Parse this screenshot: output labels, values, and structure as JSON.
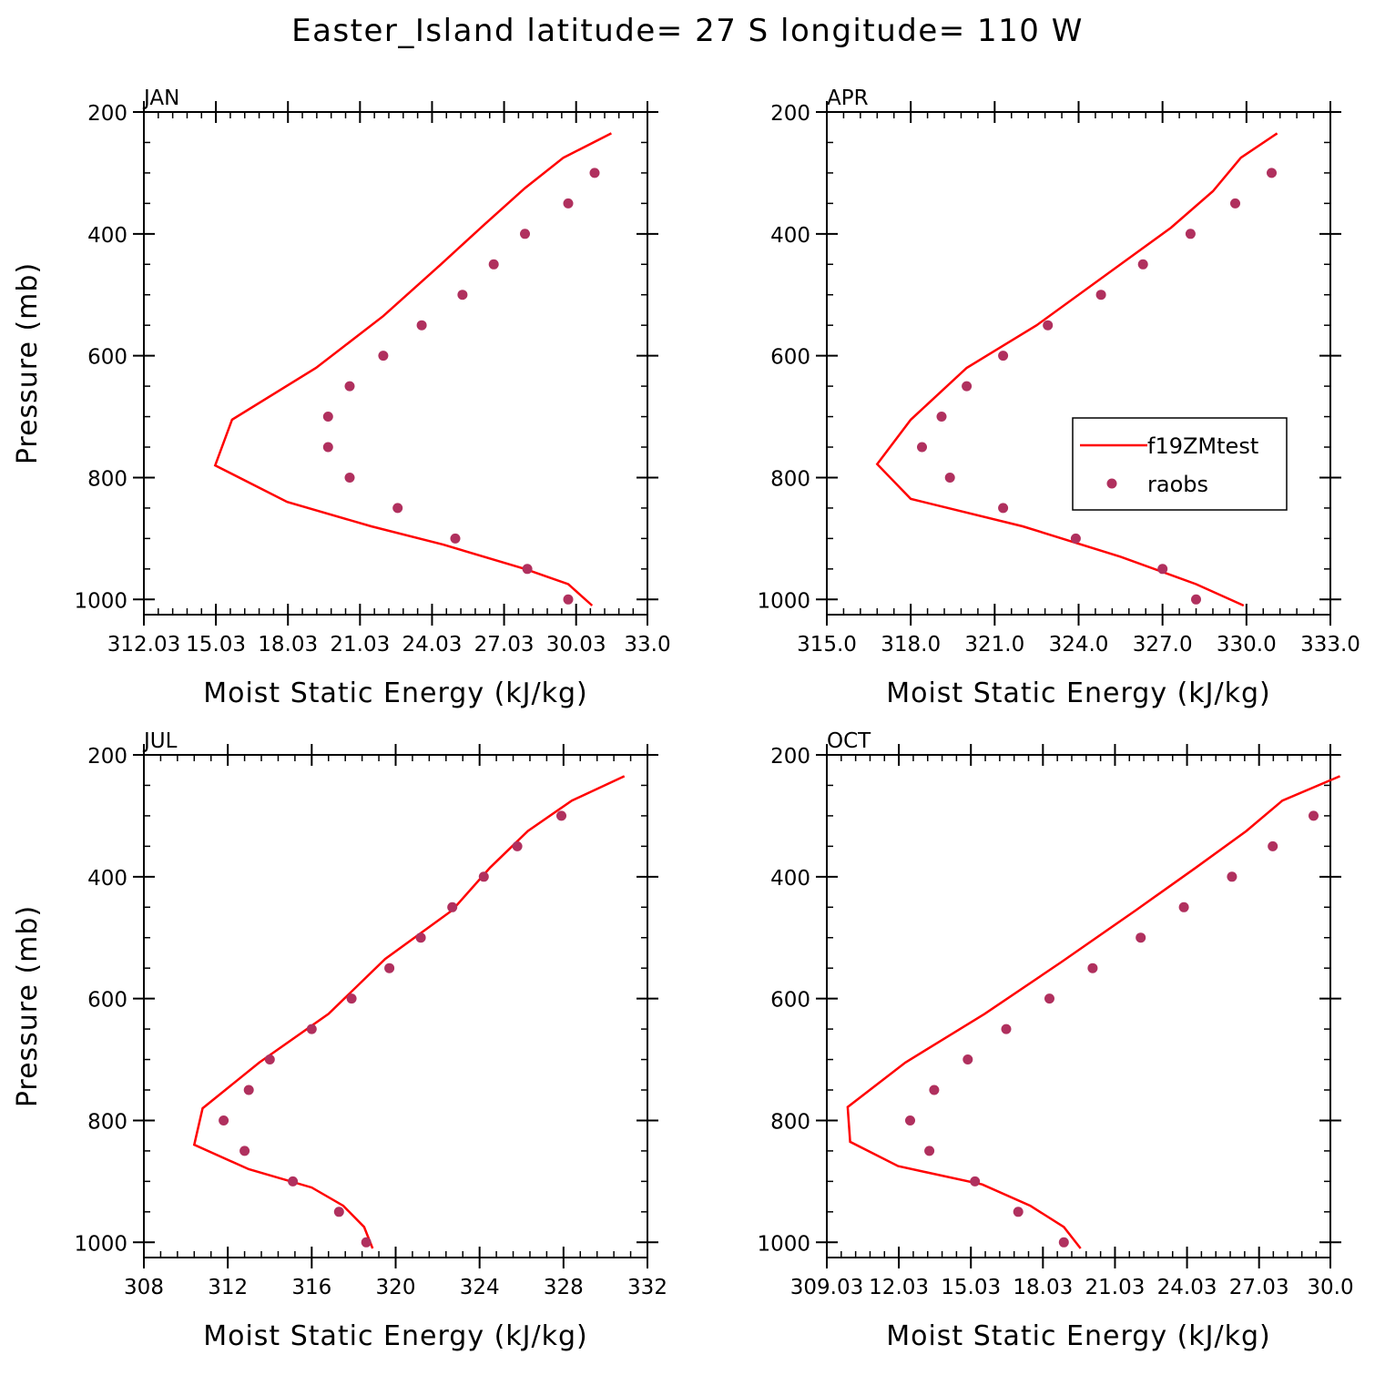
{
  "title": "Easter_Island  latitude= 27 S longitude= 110 W",
  "colors": {
    "model": "#ff0000",
    "obs": "#b0305e",
    "axes": "#000000"
  },
  "legend": {
    "model_label": "f19ZMtest",
    "obs_label": "raobs",
    "panel": "APR"
  },
  "chart_data": [
    {
      "type": "line",
      "panel": "JAN",
      "xlabel": "Moist Static Energy (kJ/kg)",
      "ylabel": "Pressure (mb)",
      "xlim": [
        312.03,
        333.0
      ],
      "ylim": [
        1025,
        200
      ],
      "xticks": [
        "312.03",
        "15.03",
        "18.03",
        "21.03",
        "24.03",
        "27.03",
        "30.03",
        "33.0"
      ],
      "xtick_values": [
        312.03,
        315.03,
        318.03,
        321.03,
        324.03,
        327.03,
        330.03,
        333.0
      ],
      "yticks": [
        200,
        400,
        600,
        800,
        1000
      ],
      "series": [
        {
          "name": "f19ZMtest",
          "kind": "line",
          "points": [
            [
              330.7,
              1010
            ],
            [
              329.7,
              975
            ],
            [
              327.9,
              950
            ],
            [
              324.5,
              910
            ],
            [
              321.5,
              880
            ],
            [
              318.0,
              840
            ],
            [
              315.0,
              780
            ],
            [
              315.7,
              705
            ],
            [
              319.2,
              620
            ],
            [
              322.0,
              535
            ],
            [
              324.4,
              450
            ],
            [
              326.2,
              385
            ],
            [
              327.9,
              325
            ],
            [
              329.5,
              275
            ],
            [
              331.5,
              235
            ]
          ]
        },
        {
          "name": "raobs",
          "kind": "scatter",
          "points": [
            [
              329.7,
              1000
            ],
            [
              328.0,
              950
            ],
            [
              325.0,
              900
            ],
            [
              322.6,
              850
            ],
            [
              320.6,
              800
            ],
            [
              319.7,
              750
            ],
            [
              319.7,
              700
            ],
            [
              320.6,
              650
            ],
            [
              322.0,
              600
            ],
            [
              323.6,
              550
            ],
            [
              325.3,
              500
            ],
            [
              326.6,
              450
            ],
            [
              327.9,
              400
            ],
            [
              329.7,
              350
            ],
            [
              330.8,
              300
            ]
          ]
        }
      ]
    },
    {
      "type": "line",
      "panel": "APR",
      "xlabel": "Moist Static Energy (kJ/kg)",
      "ylabel": "",
      "xlim": [
        315.0,
        333.0
      ],
      "ylim": [
        1025,
        200
      ],
      "xticks": [
        "315.0",
        "318.0",
        "321.0",
        "324.0",
        "327.0",
        "330.0",
        "333.0"
      ],
      "xtick_values": [
        315.0,
        318.0,
        321.0,
        324.0,
        327.0,
        330.0,
        333.0
      ],
      "yticks": [
        200,
        400,
        600,
        800,
        1000
      ],
      "series": [
        {
          "name": "f19ZMtest",
          "kind": "line",
          "points": [
            [
              329.9,
              1010
            ],
            [
              328.2,
              975
            ],
            [
              325.5,
              930
            ],
            [
              322.0,
              880
            ],
            [
              318.0,
              835
            ],
            [
              316.8,
              778
            ],
            [
              318.0,
              705
            ],
            [
              320.0,
              620
            ],
            [
              322.5,
              550
            ],
            [
              325.5,
              450
            ],
            [
              327.3,
              390
            ],
            [
              328.8,
              330
            ],
            [
              329.8,
              275
            ],
            [
              331.1,
              235
            ]
          ]
        },
        {
          "name": "raobs",
          "kind": "scatter",
          "points": [
            [
              328.2,
              1000
            ],
            [
              327.0,
              950
            ],
            [
              323.9,
              900
            ],
            [
              321.3,
              850
            ],
            [
              319.4,
              800
            ],
            [
              318.4,
              750
            ],
            [
              319.1,
              700
            ],
            [
              320.0,
              650
            ],
            [
              321.3,
              600
            ],
            [
              322.9,
              550
            ],
            [
              324.8,
              500
            ],
            [
              326.3,
              450
            ],
            [
              328.0,
              400
            ],
            [
              329.6,
              350
            ],
            [
              330.9,
              300
            ]
          ]
        }
      ]
    },
    {
      "type": "line",
      "panel": "JUL",
      "xlabel": "Moist Static Energy (kJ/kg)",
      "ylabel": "Pressure (mb)",
      "xlim": [
        308,
        332
      ],
      "ylim": [
        1025,
        200
      ],
      "xticks": [
        "308",
        "312",
        "316",
        "320",
        "324",
        "328",
        "332"
      ],
      "xtick_values": [
        308,
        312,
        316,
        320,
        324,
        328,
        332
      ],
      "yticks": [
        200,
        400,
        600,
        800,
        1000
      ],
      "series": [
        {
          "name": "f19ZMtest",
          "kind": "line",
          "points": [
            [
              318.9,
              1010
            ],
            [
              318.5,
              975
            ],
            [
              317.5,
              940
            ],
            [
              316.0,
              910
            ],
            [
              313.0,
              880
            ],
            [
              310.4,
              840
            ],
            [
              310.8,
              780
            ],
            [
              313.5,
              705
            ],
            [
              316.8,
              625
            ],
            [
              319.5,
              535
            ],
            [
              322.7,
              455
            ],
            [
              324.5,
              385
            ],
            [
              326.3,
              325
            ],
            [
              328.4,
              275
            ],
            [
              330.9,
              235
            ]
          ]
        },
        {
          "name": "raobs",
          "kind": "scatter",
          "points": [
            [
              318.6,
              1000
            ],
            [
              317.3,
              950
            ],
            [
              315.1,
              900
            ],
            [
              312.8,
              850
            ],
            [
              311.8,
              800
            ],
            [
              313.0,
              750
            ],
            [
              314.0,
              700
            ],
            [
              316.0,
              650
            ],
            [
              317.9,
              600
            ],
            [
              319.7,
              550
            ],
            [
              321.2,
              500
            ],
            [
              322.7,
              450
            ],
            [
              324.2,
              400
            ],
            [
              325.8,
              350
            ],
            [
              327.9,
              300
            ]
          ]
        }
      ]
    },
    {
      "type": "line",
      "panel": "OCT",
      "xlabel": "Moist Static Energy (kJ/kg)",
      "ylabel": "",
      "xlim": [
        309.03,
        330.0
      ],
      "ylim": [
        1025,
        200
      ],
      "xticks": [
        "309.03",
        "12.03",
        "15.03",
        "18.03",
        "21.03",
        "24.03",
        "27.03",
        "30.0"
      ],
      "xtick_values": [
        309.03,
        312.03,
        315.03,
        318.03,
        321.03,
        324.03,
        327.03,
        330.0
      ],
      "yticks": [
        200,
        400,
        600,
        800,
        1000
      ],
      "series": [
        {
          "name": "f19ZMtest",
          "kind": "line",
          "points": [
            [
              319.6,
              1010
            ],
            [
              318.9,
              975
            ],
            [
              317.5,
              940
            ],
            [
              315.5,
              905
            ],
            [
              312.0,
              875
            ],
            [
              310.0,
              835
            ],
            [
              309.9,
              778
            ],
            [
              312.3,
              705
            ],
            [
              315.6,
              625
            ],
            [
              318.8,
              540
            ],
            [
              321.9,
              455
            ],
            [
              324.4,
              385
            ],
            [
              326.5,
              325
            ],
            [
              328.0,
              275
            ],
            [
              330.4,
              235
            ]
          ]
        },
        {
          "name": "raobs",
          "kind": "scatter",
          "points": [
            [
              318.9,
              1000
            ],
            [
              317.0,
              950
            ],
            [
              315.2,
              900
            ],
            [
              313.3,
              850
            ],
            [
              312.5,
              800
            ],
            [
              313.5,
              750
            ],
            [
              314.9,
              700
            ],
            [
              316.5,
              650
            ],
            [
              318.3,
              600
            ],
            [
              320.1,
              550
            ],
            [
              322.1,
              500
            ],
            [
              323.9,
              450
            ],
            [
              325.9,
              400
            ],
            [
              327.6,
              350
            ],
            [
              329.3,
              300
            ]
          ]
        }
      ]
    }
  ]
}
